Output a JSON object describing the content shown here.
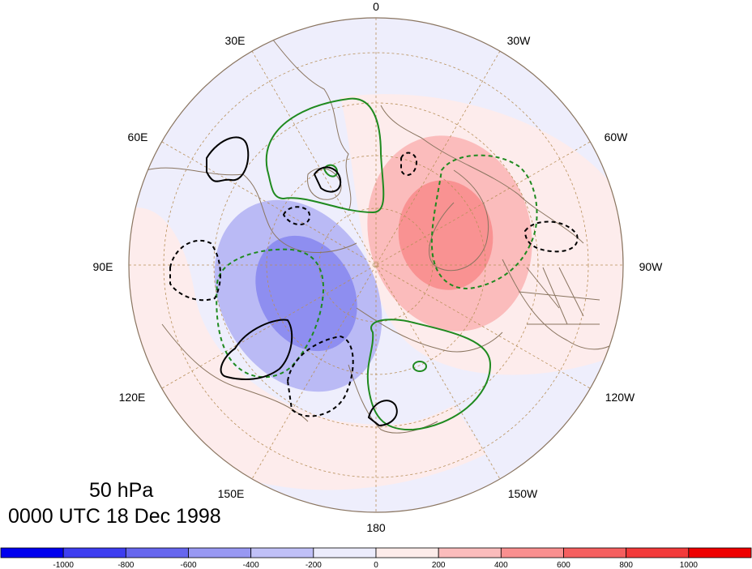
{
  "title": {
    "level": "50 hPa",
    "time": "0000 UTC 18 Dec 1998"
  },
  "longitude_labels": [
    "0",
    "30W",
    "60W",
    "90W",
    "120W",
    "150W",
    "180",
    "150E",
    "120E",
    "90E",
    "60E",
    "30E"
  ],
  "colorbar": {
    "labels": [
      "-1000",
      "-800",
      "-600",
      "-400",
      "-200",
      "0",
      "200",
      "400",
      "600",
      "800",
      "1000"
    ],
    "colors": [
      "#0000ee",
      "#3d3df0",
      "#6666ee",
      "#9898f2",
      "#c0c0f7",
      "#ececfc",
      "#fdecea",
      "#fbbcbc",
      "#f98f8f",
      "#f55f5f",
      "#f23a3a",
      "#ee0000"
    ]
  },
  "colors": {
    "land_outline": "#8a7560",
    "grid": "#b8905a",
    "green_contour": "#1f8a1f",
    "black_contour": "#000000"
  }
}
